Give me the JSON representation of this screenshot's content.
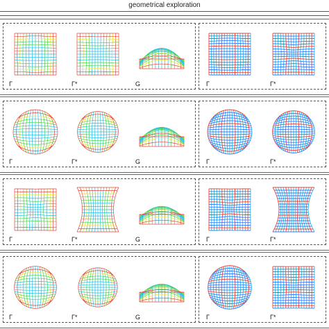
{
  "header": {
    "title": "geometrical exploration"
  },
  "labels": {
    "gamma": "Γ",
    "gamma_star": "Γ*",
    "g": "G"
  },
  "rows": [
    {
      "id": "row-1",
      "left_labels": [
        "Γ",
        "Γ*",
        "G"
      ],
      "right_labels": [
        "Γ",
        "Γ*"
      ]
    },
    {
      "id": "row-2",
      "left_labels": [
        "Γ",
        "Γ*",
        "G"
      ],
      "right_labels": [
        "Γ",
        "Γ*"
      ]
    },
    {
      "id": "row-3",
      "left_labels": [
        "Γ",
        "Γ*",
        "G"
      ],
      "right_labels": [
        "Γ",
        "Γ*"
      ]
    },
    {
      "id": "row-4",
      "left_labels": [
        "Γ",
        "Γ*",
        "G"
      ],
      "right_labels": [
        "Γ",
        "Γ*"
      ]
    }
  ],
  "colors": {
    "grid_primary": "#22c0e8",
    "grid_secondary": "#3a78ff",
    "grid_green": "#4fd34f",
    "grid_yellow": "#f2e23a",
    "grid_red": "#e8423a",
    "grid_pink": "#ff6aa8",
    "rule": "#555555"
  }
}
